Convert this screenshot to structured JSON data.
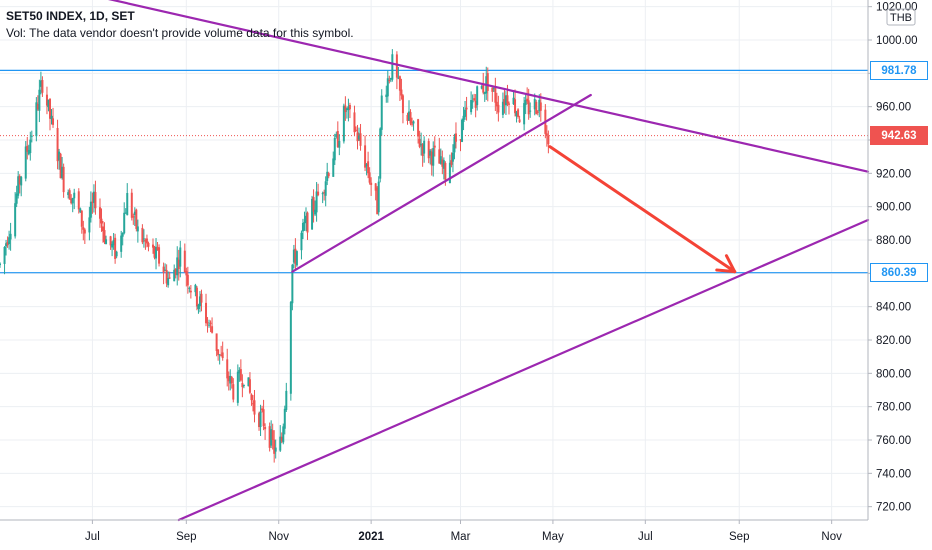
{
  "header": {
    "title": "SET50 INDEX, 1D, SET",
    "volume_note": "Vol: The data vendor doesn't provide volume data for this symbol."
  },
  "currency": "THB",
  "colors": {
    "up": "#26a69a",
    "down": "#ef5350",
    "trendline": "#9c27b0",
    "horizontal": "#2196f3",
    "arrow": "#f44336",
    "grid": "#eceff3",
    "axis_text": "#131722",
    "axis_line": "#b2b5be"
  },
  "chart_data": {
    "type": "candlestick",
    "title": "SET50 INDEX, 1D, SET",
    "xlabel": "",
    "ylabel": "",
    "ylim": [
      712,
      1024
    ],
    "x_range": [
      "2020-05-01",
      "2021-11-25"
    ],
    "grid": true,
    "y_ticks": [
      720,
      740,
      760,
      780,
      800,
      820,
      840,
      860,
      880,
      900,
      920,
      940,
      960,
      980,
      1000,
      1020
    ],
    "y_tick_labels": [
      "720.00",
      "740.00",
      "760.00",
      "780.00",
      "800.00",
      "820.00",
      "840.00",
      "860.00",
      "880.00",
      "900.00",
      "920.00",
      "940.00",
      "960.00",
      "980.00",
      "1000.00",
      "1020.00"
    ],
    "x_ticks": [
      {
        "label": "Jul",
        "date": "2020-07-01"
      },
      {
        "label": "Sep",
        "date": "2020-09-01"
      },
      {
        "label": "Nov",
        "date": "2020-11-01"
      },
      {
        "label": "2021",
        "date": "2021-01-01",
        "bold": true
      },
      {
        "label": "Mar",
        "date": "2021-03-01"
      },
      {
        "label": "May",
        "date": "2021-05-01"
      },
      {
        "label": "Jul",
        "date": "2021-07-01"
      },
      {
        "label": "Sep",
        "date": "2021-09-01"
      },
      {
        "label": "Nov",
        "date": "2021-11-01"
      }
    ],
    "price_path": [
      [
        "2020-05-01",
        865
      ],
      [
        "2020-05-08",
        890
      ],
      [
        "2020-05-15",
        920
      ],
      [
        "2020-05-22",
        945
      ],
      [
        "2020-05-29",
        975
      ],
      [
        "2020-06-05",
        945
      ],
      [
        "2020-06-12",
        915
      ],
      [
        "2020-06-19",
        905
      ],
      [
        "2020-06-26",
        885
      ],
      [
        "2020-07-03",
        905
      ],
      [
        "2020-07-10",
        880
      ],
      [
        "2020-07-17",
        872
      ],
      [
        "2020-07-24",
        905
      ],
      [
        "2020-07-31",
        885
      ],
      [
        "2020-08-07",
        875
      ],
      [
        "2020-08-14",
        868
      ],
      [
        "2020-08-21",
        855
      ],
      [
        "2020-08-28",
        872
      ],
      [
        "2020-09-04",
        852
      ],
      [
        "2020-09-11",
        840
      ],
      [
        "2020-09-18",
        825
      ],
      [
        "2020-09-25",
        805
      ],
      [
        "2020-10-02",
        790
      ],
      [
        "2020-10-09",
        800
      ],
      [
        "2020-10-16",
        778
      ],
      [
        "2020-10-23",
        770
      ],
      [
        "2020-10-30",
        752
      ],
      [
        "2020-11-03",
        760
      ],
      [
        "2020-11-06",
        795
      ],
      [
        "2020-11-10",
        865
      ],
      [
        "2020-11-17",
        885
      ],
      [
        "2020-11-24",
        900
      ],
      [
        "2020-12-01",
        915
      ],
      [
        "2020-12-08",
        935
      ],
      [
        "2020-12-15",
        958
      ],
      [
        "2020-12-22",
        945
      ],
      [
        "2020-12-29",
        925
      ],
      [
        "2021-01-05",
        900
      ],
      [
        "2021-01-08",
        965
      ],
      [
        "2021-01-15",
        985
      ],
      [
        "2021-01-22",
        960
      ],
      [
        "2021-01-29",
        945
      ],
      [
        "2021-02-05",
        935
      ],
      [
        "2021-02-12",
        930
      ],
      [
        "2021-02-19",
        920
      ],
      [
        "2021-02-26",
        940
      ],
      [
        "2021-03-05",
        955
      ],
      [
        "2021-03-12",
        968
      ],
      [
        "2021-03-19",
        975
      ],
      [
        "2021-03-26",
        962
      ],
      [
        "2021-04-02",
        968
      ],
      [
        "2021-04-09",
        955
      ],
      [
        "2021-04-16",
        960
      ],
      [
        "2021-04-23",
        962
      ],
      [
        "2021-04-28",
        943
      ]
    ],
    "last_price": 942.63,
    "horizontal_levels": [
      981.78,
      860.39
    ],
    "price_labels": [
      "981.78",
      "942.63",
      "860.39"
    ],
    "trendlines": [
      {
        "name": "upper-resistance",
        "from": [
          "2020-06-01",
          1033
        ],
        "to": [
          "2021-11-25",
          921
        ]
      },
      {
        "name": "lower-support",
        "from": [
          "2020-08-27",
          712
        ],
        "to": [
          "2021-11-25",
          892
        ]
      },
      {
        "name": "rising-support",
        "from": [
          "2020-11-10",
          861
        ],
        "to": [
          "2021-05-26",
          967
        ]
      }
    ],
    "arrow": {
      "from": [
        "2021-04-29",
        936
      ],
      "to": [
        "2021-08-29",
        861
      ]
    }
  }
}
